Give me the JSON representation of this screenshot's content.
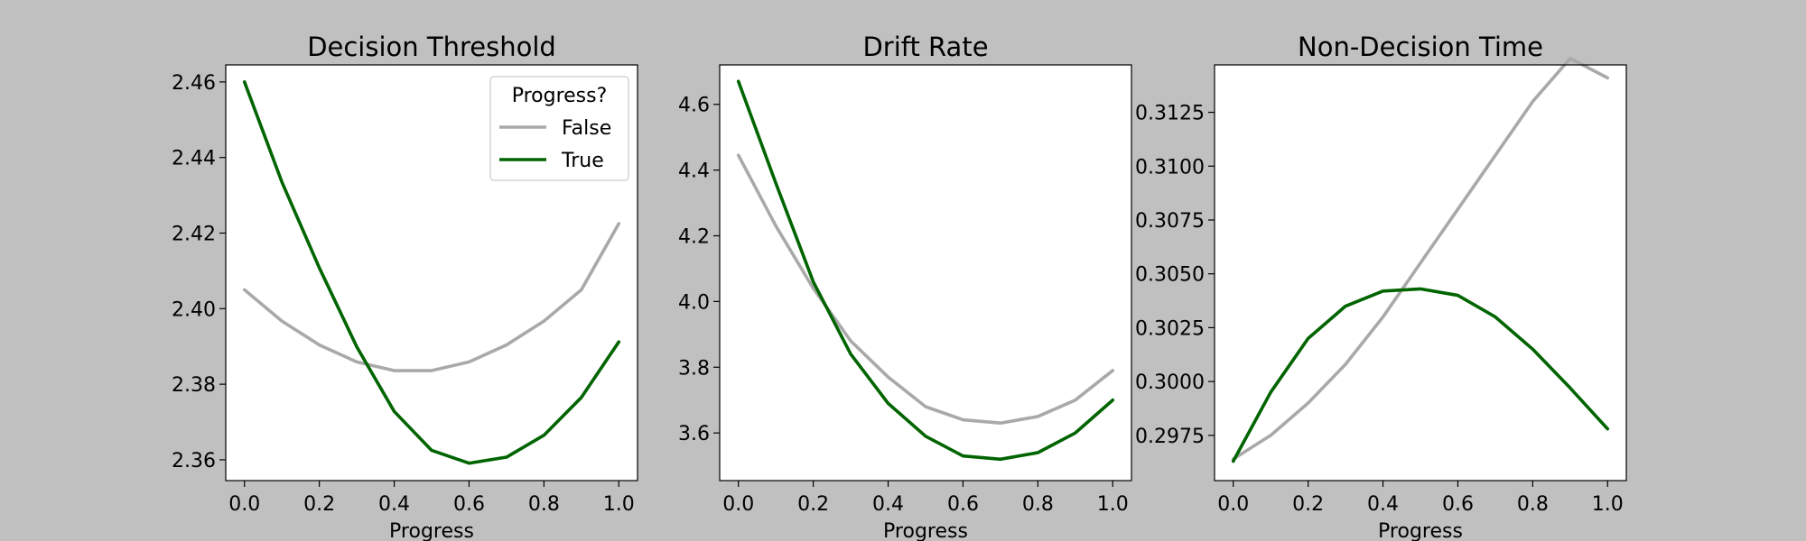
{
  "figure": {
    "background": "#c0c0c0",
    "plot_background": "#ffffff"
  },
  "legend": {
    "title": "Progress?",
    "placement": "upper-right",
    "panel": 0,
    "entries": [
      {
        "label": "False",
        "color": "#a9a9a9"
      },
      {
        "label": "True",
        "color": "#006400"
      }
    ]
  },
  "chart_data": [
    {
      "type": "line",
      "title": "Decision Threshold",
      "xlabel": "Progress",
      "ylabel": "",
      "xlim": [
        -0.05,
        1.05
      ],
      "ylim": [
        2.3545,
        2.4645
      ],
      "xticks": [
        "0.0",
        "0.2",
        "0.4",
        "0.6",
        "0.8",
        "1.0"
      ],
      "yticks": [
        "2.36",
        "2.38",
        "2.40",
        "2.42",
        "2.44",
        "2.46"
      ],
      "grid": false,
      "series": [
        {
          "name": "False",
          "color": "#a9a9a9",
          "x": [
            0.0,
            0.1,
            0.2,
            0.3,
            0.4,
            0.5,
            0.6,
            0.7,
            0.8,
            0.9,
            1.0
          ],
          "y": [
            2.405,
            2.3967,
            2.3904,
            2.3859,
            2.3836,
            2.3836,
            2.3859,
            2.3904,
            2.3967,
            2.405,
            2.4225
          ]
        },
        {
          "name": "True",
          "color": "#006400",
          "x": [
            0.0,
            0.1,
            0.2,
            0.3,
            0.4,
            0.5,
            0.6,
            0.7,
            0.8,
            0.9,
            1.0
          ],
          "y": [
            2.46,
            2.4335,
            2.4108,
            2.3899,
            2.3728,
            2.3625,
            2.3591,
            2.3607,
            2.3665,
            2.3765,
            2.3912
          ]
        }
      ]
    },
    {
      "type": "line",
      "title": "Drift Rate",
      "xlabel": "Progress",
      "ylabel": "",
      "xlim": [
        -0.05,
        1.05
      ],
      "ylim": [
        3.455,
        4.72
      ],
      "xticks": [
        "0.0",
        "0.2",
        "0.4",
        "0.6",
        "0.8",
        "1.0"
      ],
      "yticks": [
        "3.6",
        "3.8",
        "4.0",
        "4.2",
        "4.4",
        "4.6"
      ],
      "grid": false,
      "series": [
        {
          "name": "False",
          "color": "#a9a9a9",
          "x": [
            0.0,
            0.1,
            0.2,
            0.3,
            0.4,
            0.5,
            0.6,
            0.7,
            0.8,
            0.9,
            1.0
          ],
          "y": [
            4.445,
            4.23,
            4.04,
            3.88,
            3.77,
            3.68,
            3.64,
            3.63,
            3.65,
            3.7,
            3.79
          ]
        },
        {
          "name": "True",
          "color": "#006400",
          "x": [
            0.0,
            0.1,
            0.2,
            0.3,
            0.4,
            0.5,
            0.6,
            0.7,
            0.8,
            0.9,
            1.0
          ],
          "y": [
            4.67,
            4.36,
            4.06,
            3.84,
            3.69,
            3.59,
            3.53,
            3.52,
            3.54,
            3.6,
            3.7
          ]
        }
      ]
    },
    {
      "type": "line",
      "title": "Non-Decision Time",
      "xlabel": "Progress",
      "ylabel": "",
      "xlim": [
        -0.05,
        1.05
      ],
      "ylim": [
        0.2954,
        0.3147
      ],
      "xticks": [
        "0.0",
        "0.2",
        "0.4",
        "0.6",
        "0.8",
        "1.0"
      ],
      "yticks": [
        "0.2975",
        "0.3000",
        "0.3025",
        "0.3050",
        "0.3075",
        "0.3100",
        "0.3125"
      ],
      "grid": false,
      "series": [
        {
          "name": "False",
          "color": "#a9a9a9",
          "x": [
            0.0,
            0.1,
            0.2,
            0.3,
            0.4,
            0.5,
            0.6,
            0.7,
            0.8,
            0.9,
            1.0
          ],
          "y": [
            0.2964,
            0.2975,
            0.299,
            0.3008,
            0.303,
            0.3055,
            0.308,
            0.3105,
            0.313,
            0.315,
            0.3141
          ]
        },
        {
          "name": "True",
          "color": "#006400",
          "x": [
            0.0,
            0.1,
            0.2,
            0.3,
            0.4,
            0.5,
            0.6,
            0.7,
            0.8,
            0.9,
            1.0
          ],
          "y": [
            0.2963,
            0.2995,
            0.302,
            0.3035,
            0.3042,
            0.3043,
            0.304,
            0.303,
            0.3015,
            0.2997,
            0.2978
          ]
        }
      ]
    }
  ]
}
